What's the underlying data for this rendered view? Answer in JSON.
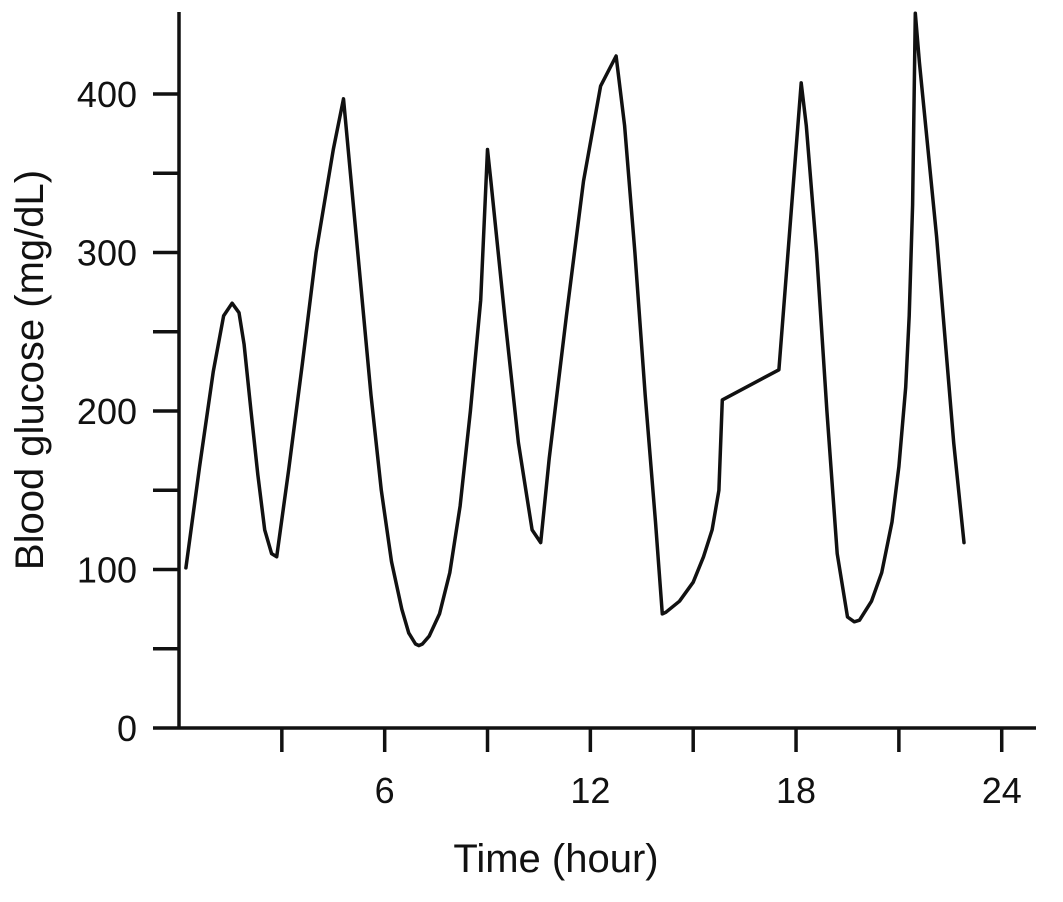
{
  "chart_data": {
    "type": "line",
    "title": "",
    "xlabel": "Time (hour)",
    "ylabel": "Blood glucose (mg/dL)",
    "xlim": [
      0,
      25
    ],
    "ylim": [
      0,
      450
    ],
    "x_ticks": [
      3,
      6,
      9,
      12,
      15,
      18,
      21,
      24
    ],
    "x_tick_labels": [
      "",
      "6",
      "",
      "12",
      "",
      "18",
      "",
      "24"
    ],
    "y_ticks": [
      0,
      50,
      100,
      150,
      200,
      250,
      300,
      350,
      400
    ],
    "y_tick_labels": [
      "0",
      "",
      "100",
      "",
      "200",
      "",
      "300",
      "",
      "400"
    ],
    "grid": false,
    "legend": "none",
    "line_color": "#111111",
    "series": [
      {
        "x": [
          0.2,
          0.6,
          1.0,
          1.3,
          1.55,
          1.75,
          1.9,
          2.1,
          2.3,
          2.5,
          2.7,
          2.85,
          3.2,
          3.6,
          4.0,
          4.5,
          4.8,
          5.0,
          5.3,
          5.6,
          5.9,
          6.2,
          6.5,
          6.7,
          6.9,
          7.0,
          7.1,
          7.3,
          7.6,
          7.9,
          8.2,
          8.5,
          8.8,
          9.0,
          9.1,
          9.5,
          9.9,
          10.3,
          10.55,
          10.8,
          11.3,
          11.8,
          12.3,
          12.75,
          13.0,
          13.3,
          13.6,
          13.9,
          14.1,
          14.2,
          14.6,
          15.0,
          15.3,
          15.55,
          15.75,
          15.85,
          17.5,
          18.15,
          18.3,
          18.6,
          18.9,
          19.2,
          19.5,
          19.7,
          19.85,
          20.2,
          20.5,
          20.8,
          21.0,
          21.2,
          21.3,
          21.4,
          21.48,
          21.6,
          22.1,
          22.6,
          22.9
        ],
        "y": [
          101,
          165,
          225,
          260,
          268,
          262,
          242,
          200,
          160,
          125,
          110,
          108,
          163,
          230,
          300,
          365,
          397,
          350,
          280,
          210,
          150,
          105,
          75,
          60,
          53,
          52,
          53,
          58,
          72,
          98,
          140,
          200,
          270,
          365,
          345,
          260,
          180,
          125,
          117,
          170,
          260,
          345,
          405,
          424,
          380,
          300,
          210,
          130,
          72,
          73,
          80,
          92,
          108,
          125,
          150,
          207,
          226,
          407,
          380,
          300,
          200,
          110,
          70,
          67,
          68,
          80,
          98,
          130,
          165,
          215,
          260,
          330,
          451,
          420,
          310,
          180,
          117
        ]
      }
    ]
  }
}
